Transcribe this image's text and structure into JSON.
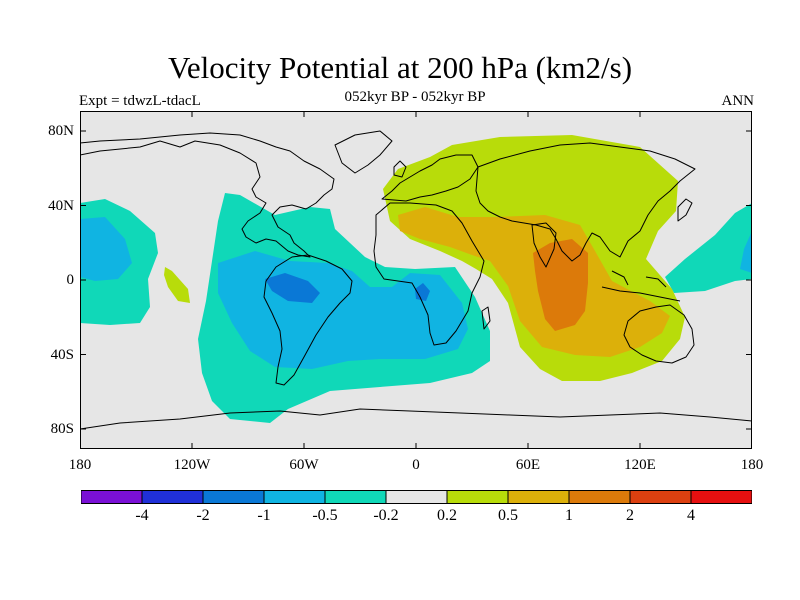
{
  "title": "Velocity Potential at 200 hPa (km2/s)",
  "subtitle": "052kyr BP - 052kyr BP",
  "left_label": "Expt = tdwzL-tdacL",
  "right_label": "ANN",
  "y_ticks": [
    "80N",
    "40N",
    "0",
    "40S",
    "80S"
  ],
  "x_ticks": [
    "180",
    "120W",
    "60W",
    "0",
    "60E",
    "120E",
    "180"
  ],
  "colorbar": {
    "colors": [
      "#7a10d6",
      "#2030d8",
      "#0a78d6",
      "#10b4e2",
      "#10d8b8",
      "#e6e6e6",
      "#b8dc0a",
      "#dcb00a",
      "#dc7a0a",
      "#dc4010",
      "#e61010"
    ],
    "labels": [
      "-4",
      "-2",
      "-1",
      "-0.5",
      "-0.2",
      "0.2",
      "0.5",
      "1",
      "2",
      "4"
    ]
  },
  "colors": {
    "background": "#e6e6e6",
    "coast": "#000000"
  }
}
